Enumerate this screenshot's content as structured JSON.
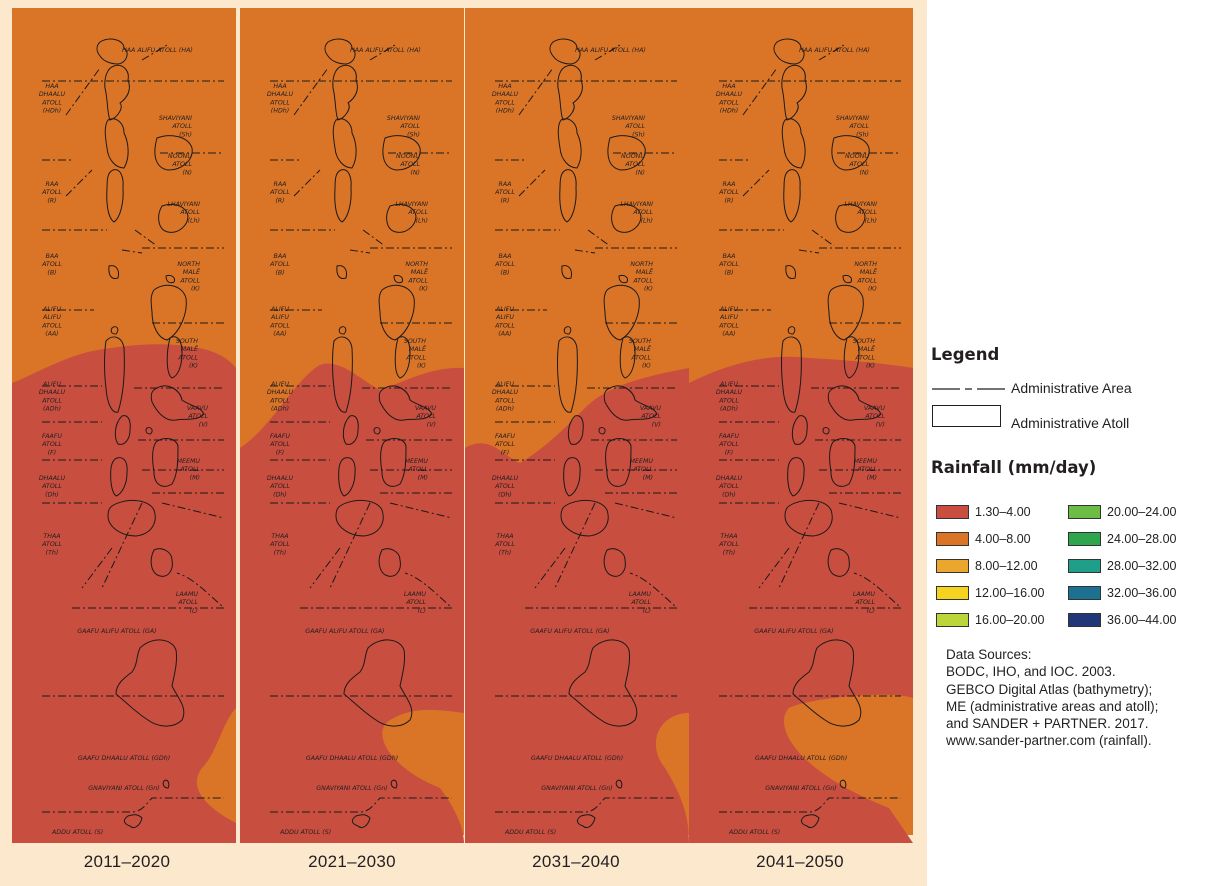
{
  "periods": [
    "2011–2020",
    "2021–2030",
    "2031–2040",
    "2041–2050"
  ],
  "atoll_labels": [
    {
      "lines": [
        "HAA ALIFU ATOLL (HA)"
      ],
      "anchor": "start"
    },
    {
      "lines": [
        "HAA",
        "DHAALU",
        "ATOLL",
        "(HDh)"
      ],
      "anchor": "middle"
    },
    {
      "lines": [
        "SHAVIYANI",
        "ATOLL",
        "(Sh)"
      ],
      "anchor": "end"
    },
    {
      "lines": [
        "NOONU",
        "ATOLL",
        "(N)"
      ],
      "anchor": "end"
    },
    {
      "lines": [
        "RAA",
        "ATOLL",
        "(R)"
      ],
      "anchor": "middle"
    },
    {
      "lines": [
        "LHAVIYANI",
        "ATOLL",
        "(Lh)"
      ],
      "anchor": "end"
    },
    {
      "lines": [
        "BAA",
        "ATOLL",
        "(B)"
      ],
      "anchor": "middle"
    },
    {
      "lines": [
        "NORTH",
        "MALĒ",
        "ATOLL",
        "(K)"
      ],
      "anchor": "end"
    },
    {
      "lines": [
        "ALIFU",
        "ALIFU",
        "ATOLL",
        "(AA)"
      ],
      "anchor": "middle"
    },
    {
      "lines": [
        "SOUTH",
        "MALĒ",
        "ATOLL",
        "(K)"
      ],
      "anchor": "end"
    },
    {
      "lines": [
        "ALIFU",
        "DHAALU",
        "ATOLL",
        "(ADh)"
      ],
      "anchor": "middle"
    },
    {
      "lines": [
        "VAAVU",
        "ATOLL",
        "(V)"
      ],
      "anchor": "end"
    },
    {
      "lines": [
        "FAAFU",
        "ATOLL",
        "(F)"
      ],
      "anchor": "middle"
    },
    {
      "lines": [
        "MEEMU",
        "ATOLL",
        "(M)"
      ],
      "anchor": "end"
    },
    {
      "lines": [
        "DHAALU",
        "ATOLL",
        "(Dh)"
      ],
      "anchor": "middle"
    },
    {
      "lines": [
        "THAA",
        "ATOLL",
        "(Th)"
      ],
      "anchor": "middle"
    },
    {
      "lines": [
        "LAAMU",
        "ATOLL",
        "(L)"
      ],
      "anchor": "end"
    },
    {
      "lines": [
        "GAAFU ALIFU ATOLL (GA)"
      ],
      "anchor": "middle"
    },
    {
      "lines": [
        "GAAFU DHAALU ATOLL (GDh)"
      ],
      "anchor": "middle"
    },
    {
      "lines": [
        "GNAVIYANI ATOLL (Gn)"
      ],
      "anchor": "middle"
    },
    {
      "lines": [
        "ADDU ATOLL (S)"
      ],
      "anchor": "start"
    }
  ],
  "legend": {
    "title": "Legend",
    "admin_area_label": "Administrative Area",
    "admin_atoll_label": "Administrative Atoll",
    "rainfall_title": "Rainfall (mm/day)",
    "classes": [
      {
        "label": "1.30–4.00",
        "color": "#c84e40"
      },
      {
        "label": "4.00–8.00",
        "color": "#da7528"
      },
      {
        "label": "8.00–12.00",
        "color": "#eba62e"
      },
      {
        "label": "12.00–16.00",
        "color": "#f5d320"
      },
      {
        "label": "16.00–20.00",
        "color": "#bcd53b"
      },
      {
        "label": "20.00–24.00",
        "color": "#6cbd45"
      },
      {
        "label": "24.00–28.00",
        "color": "#2fa64e"
      },
      {
        "label": "28.00–32.00",
        "color": "#1f9e8a"
      },
      {
        "label": "32.00–36.00",
        "color": "#1c7190"
      },
      {
        "label": "36.00–44.00",
        "color": "#223778"
      }
    ]
  },
  "sources": {
    "heading": "Data Sources:",
    "lines": [
      "BODC, IHO, and IOC. 2003.",
      "GEBCO Digital Atlas (bathymetry);",
      "ME (administrative areas and atoll);",
      "and SANDER + PARTNER. 2017.",
      "www.sander-partner.com (rainfall)."
    ]
  },
  "colors": {
    "frame": "#fbe8cd",
    "outline": "#1a1a1a"
  }
}
